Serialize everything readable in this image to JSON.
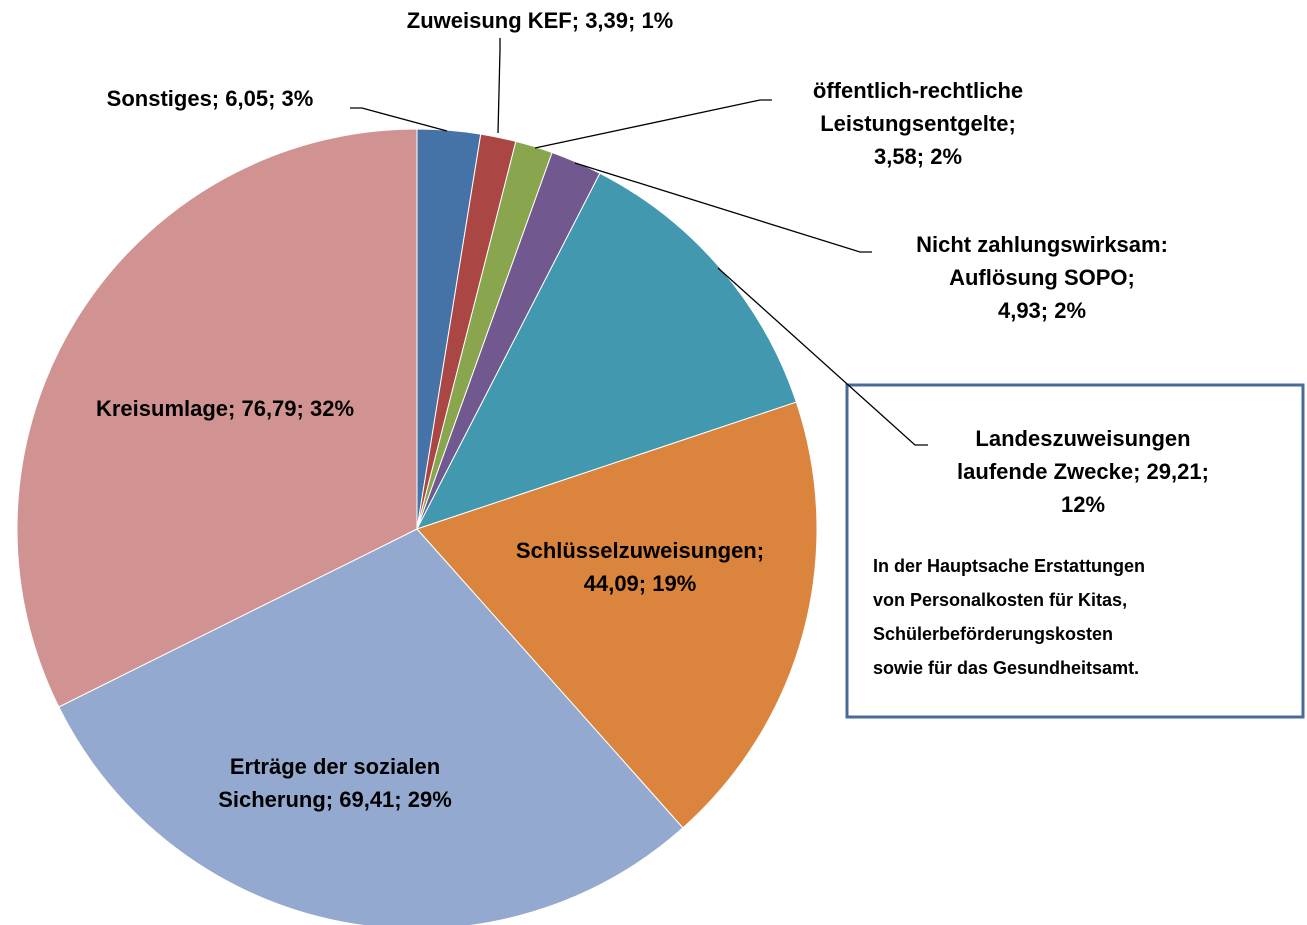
{
  "chart_data": {
    "type": "pie",
    "values": [
      6.05,
      3.39,
      3.58,
      4.93,
      29.21,
      44.09,
      69.41,
      76.79
    ],
    "value_labels": [
      [
        "Sonstiges; 6,05; 3%"
      ],
      [
        "Zuweisung KEF; 3,39; 1%"
      ],
      [
        "öffentlich-rechtliche",
        "Leistungsentgelte;",
        "3,58; 2%"
      ],
      [
        "Nicht zahlungswirksam:",
        "Auflösung SOPO;",
        "4,93; 2%"
      ],
      [
        "Landeszuweisungen",
        "laufende Zwecke; 29,21;",
        "12%"
      ],
      [
        "Schlüsselzuweisungen;",
        "44,09; 19%"
      ],
      [
        "Erträge der sozialen",
        "Sicherung; 69,41; 29%"
      ],
      [
        "Kreisumlage; 76,79; 32%"
      ]
    ],
    "colors": [
      "#4572a7",
      "#aa4643",
      "#89a54e",
      "#71588f",
      "#4198af",
      "#db843d",
      "#93a9cf",
      "#d19392"
    ],
    "annotation": [
      "In der Hauptsache Erstattungen",
      "von Personalkosten für Kitas,",
      "Schülerbeförderungskosten",
      "sowie für das Gesundheitsamt."
    ]
  }
}
